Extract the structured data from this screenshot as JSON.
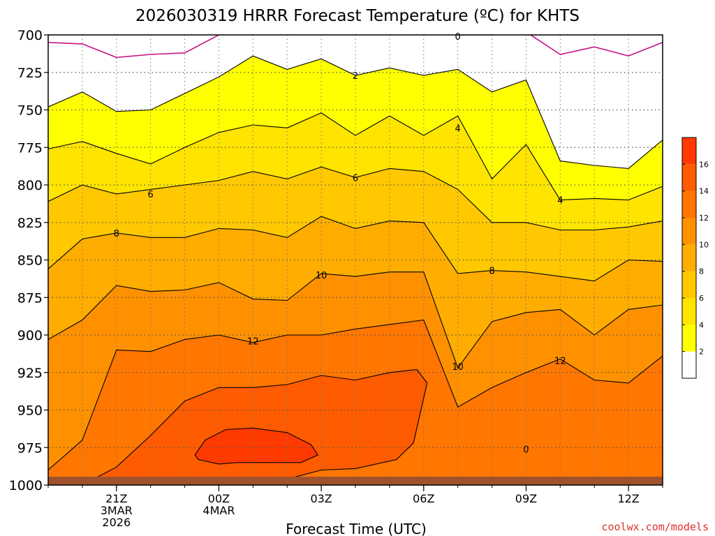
{
  "header": {
    "title": "2026030319 HRRR Forecast Temperature (ºC) for KHTS"
  },
  "footer": {
    "credit": "coolwx.com/models"
  },
  "colors": {
    "white": "#ffffff",
    "c2": "#ffff00",
    "c4": "#ffe400",
    "c6": "#ffc800",
    "c8": "#ffad00",
    "c10": "#ff9100",
    "c12": "#ff7600",
    "c14": "#ff5b00",
    "c16": "#ff3a00",
    "ground": "#a0522d",
    "freezing_line": "#c71585"
  },
  "chart_data": {
    "type": "contour",
    "title": "2026030319 HRRR Forecast Temperature (ºC) for KHTS",
    "xlabel": "Forecast Time (UTC)",
    "ylabel": "",
    "x_unit": "hours from 2026-03-03 19Z",
    "xlim": [
      0,
      18
    ],
    "ylim": [
      700,
      1000
    ],
    "yticks": [
      700,
      725,
      750,
      775,
      800,
      825,
      850,
      875,
      900,
      925,
      950,
      975,
      1000
    ],
    "xticks": [
      {
        "x": 2,
        "label": "21Z",
        "sub": [
          "3MAR",
          "2026"
        ]
      },
      {
        "x": 5,
        "label": "00Z",
        "sub": [
          "4MAR"
        ]
      },
      {
        "x": 8,
        "label": "03Z",
        "sub": []
      },
      {
        "x": 11,
        "label": "06Z",
        "sub": []
      },
      {
        "x": 14,
        "label": "09Z",
        "sub": []
      },
      {
        "x": 17,
        "label": "12Z",
        "sub": []
      }
    ],
    "grid": true,
    "colorbar": {
      "position": "right",
      "levels": [
        0,
        2,
        4,
        6,
        8,
        10,
        12,
        14,
        16,
        18
      ],
      "labels": [
        "2",
        "4",
        "6",
        "8",
        "10",
        "12",
        "14",
        "16"
      ]
    },
    "contours": [
      {
        "level": 0,
        "x": [
          0,
          1,
          2,
          3,
          4,
          5,
          6,
          7,
          8,
          9,
          10,
          11,
          12,
          13,
          14,
          15,
          16,
          17,
          18
        ],
        "p": [
          705,
          706,
          715,
          713,
          712,
          700,
          690,
          688,
          688,
          688,
          688,
          688,
          700,
          700,
          698,
          713,
          708,
          714,
          705
        ]
      },
      {
        "level": 2,
        "x": [
          0,
          1,
          2,
          3,
          4,
          5,
          6,
          7,
          8,
          9,
          10,
          11,
          12,
          13,
          14,
          15,
          16,
          17,
          18
        ],
        "p": [
          748,
          738,
          751,
          750,
          739,
          728,
          714,
          723,
          716,
          727,
          722,
          727,
          723,
          738,
          730,
          784,
          787,
          789,
          770
        ]
      },
      {
        "level": 4,
        "x": [
          0,
          1,
          2,
          3,
          4,
          5,
          6,
          7,
          8,
          9,
          10,
          11,
          12,
          13,
          14,
          15,
          16,
          17,
          18
        ],
        "p": [
          776,
          771,
          779,
          786,
          775,
          765,
          760,
          762,
          752,
          767,
          754,
          767,
          754,
          796,
          773,
          810,
          809,
          810,
          801
        ]
      },
      {
        "level": 6,
        "x": [
          0,
          1,
          2,
          3,
          4,
          5,
          6,
          7,
          8,
          9,
          10,
          11,
          12,
          13,
          14,
          15,
          16,
          17,
          18
        ],
        "p": [
          811,
          800,
          806,
          803,
          800,
          797,
          791,
          796,
          788,
          795,
          789,
          791,
          803,
          825,
          825,
          830,
          830,
          828,
          824
        ]
      },
      {
        "level": 8,
        "x": [
          0,
          1,
          2,
          3,
          4,
          5,
          6,
          7,
          8,
          9,
          10,
          11,
          12,
          13,
          14,
          15,
          16,
          17,
          18
        ],
        "p": [
          856,
          836,
          832,
          835,
          835,
          829,
          830,
          835,
          821,
          829,
          824,
          825,
          859,
          857,
          858,
          861,
          864,
          850,
          851
        ]
      },
      {
        "level": 10,
        "x": [
          0,
          1,
          2,
          3,
          4,
          5,
          6,
          7,
          8,
          9,
          10,
          11,
          12,
          13,
          14,
          15,
          16,
          17,
          18
        ],
        "p": [
          903,
          890,
          867,
          871,
          870,
          865,
          876,
          877,
          859,
          861,
          858,
          858,
          922,
          891,
          885,
          883,
          900,
          883,
          880
        ]
      },
      {
        "level": 12,
        "x": [
          0,
          1,
          2,
          3,
          4,
          5,
          6,
          7,
          8,
          9,
          10,
          11,
          12,
          13,
          14,
          15,
          16,
          17,
          18
        ],
        "p": [
          990,
          970,
          910,
          911,
          903,
          900,
          905,
          900,
          900,
          896,
          893,
          890,
          948,
          935,
          925,
          916,
          930,
          932,
          914
        ]
      },
      {
        "level": 14,
        "x": [
          1,
          2,
          3,
          4,
          5,
          6,
          7,
          8,
          9,
          10,
          10.8,
          11.1,
          10.7,
          10.2,
          9,
          8,
          7,
          6,
          5,
          4,
          3,
          2,
          1
        ],
        "p": [
          1000,
          988,
          967,
          944,
          935,
          935,
          933,
          927,
          930,
          925,
          923,
          932,
          972,
          983,
          989,
          990,
          996,
          997,
          997,
          997,
          998,
          1000,
          1000
        ]
      },
      {
        "level": 16,
        "x": [
          4.3,
          4.6,
          5.2,
          6.0,
          7.0,
          7.7,
          7.9,
          7.4,
          6.5,
          5.5,
          5.0,
          4.4
        ],
        "p": [
          980,
          970,
          963,
          962,
          965,
          973,
          980,
          985,
          985,
          985,
          986,
          983
        ]
      }
    ],
    "contour_labels": [
      {
        "text": "0",
        "x": 12.0,
        "p": 701
      },
      {
        "text": "2",
        "x": 9.0,
        "p": 727
      },
      {
        "text": "4",
        "x": 12.0,
        "p": 762
      },
      {
        "text": "4",
        "x": 15.0,
        "p": 810
      },
      {
        "text": "6",
        "x": 3.0,
        "p": 806
      },
      {
        "text": "6",
        "x": 9.0,
        "p": 795
      },
      {
        "text": "8",
        "x": 2.0,
        "p": 832
      },
      {
        "text": "8",
        "x": 13.0,
        "p": 857
      },
      {
        "text": "10",
        "x": 8.0,
        "p": 860
      },
      {
        "text": "10",
        "x": 12.0,
        "p": 921
      },
      {
        "text": "12",
        "x": 6.0,
        "p": 904
      },
      {
        "text": "12",
        "x": 15.0,
        "p": 917
      },
      {
        "text": "0",
        "x": 14.0,
        "p": 976
      }
    ]
  }
}
